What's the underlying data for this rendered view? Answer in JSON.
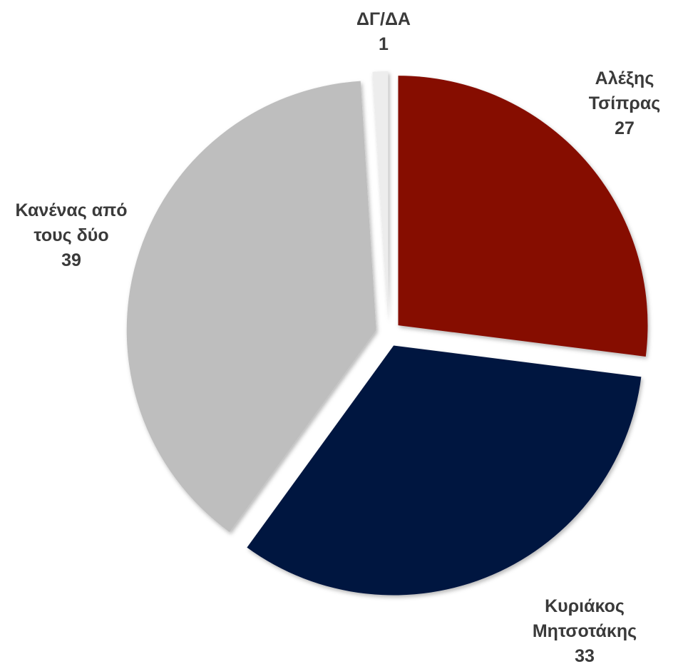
{
  "chart_data": {
    "type": "pie",
    "slices": [
      {
        "label_lines": [
          "Αλέξης",
          "Τσίπρας"
        ],
        "value": 27,
        "display_value": "27",
        "color": "#861003"
      },
      {
        "label_lines": [
          "Κυριάκος",
          "Μητσοτάκης"
        ],
        "value": 33,
        "display_value": "33",
        "color": "#011540"
      },
      {
        "label_lines": [
          "Κανένας από",
          "τους δύο"
        ],
        "value": 39,
        "display_value": "39",
        "color": "#bebebe"
      },
      {
        "label_lines": [
          "ΔΓ/ΔΑ"
        ],
        "value": 1,
        "display_value": "1",
        "color": "#ededed"
      }
    ],
    "start_angle": "12 o'clock",
    "direction": "clockwise",
    "exploded": true,
    "legend": "none",
    "data_labels": "outside"
  }
}
